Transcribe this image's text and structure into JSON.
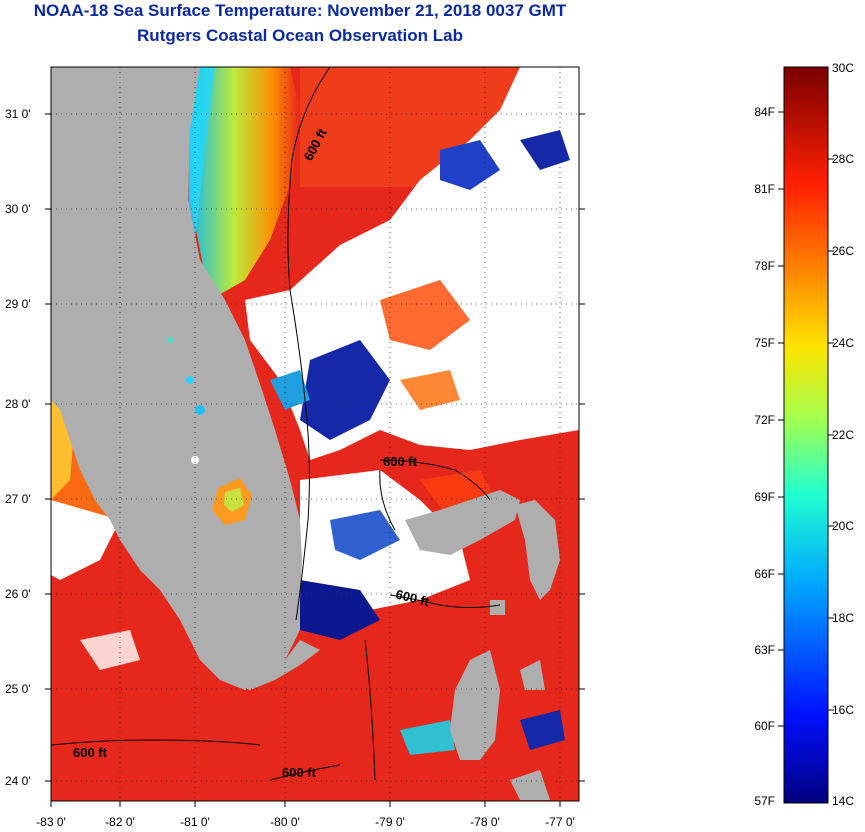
{
  "title": {
    "line1": "NOAA-18 Sea Surface Temperature:  November 21, 2018 0037 GMT",
    "line2": "Rutgers Coastal Ocean Observation Lab"
  },
  "map": {
    "lat_labels": [
      "31 0'",
      "30 0'",
      "29 0'",
      "28 0'",
      "27 0'",
      "26 0'",
      "25 0'",
      "24 0'"
    ],
    "lon_labels": [
      "-83 0'",
      "-82 0'",
      "-81 0'",
      "-80 0'",
      "-79 0'",
      "-78 0'",
      "-77 0'"
    ],
    "contour_labels": [
      "600 ft",
      "600 ft",
      "600 ft",
      "600 ft",
      "600 ft"
    ],
    "colors": {
      "land": "#aeaeae",
      "cloud": "#ffffff",
      "warm": "#e8261a",
      "cold": "#101c9c",
      "contour": "#000000"
    }
  },
  "colorbar": {
    "celsius_labels": [
      "30C",
      "28C",
      "26C",
      "24C",
      "22C",
      "20C",
      "18C",
      "16C",
      "14C"
    ],
    "fahrenheit_labels": [
      "84F",
      "81F",
      "78F",
      "75F",
      "72F",
      "69F",
      "66F",
      "63F",
      "60F",
      "57F"
    ]
  }
}
